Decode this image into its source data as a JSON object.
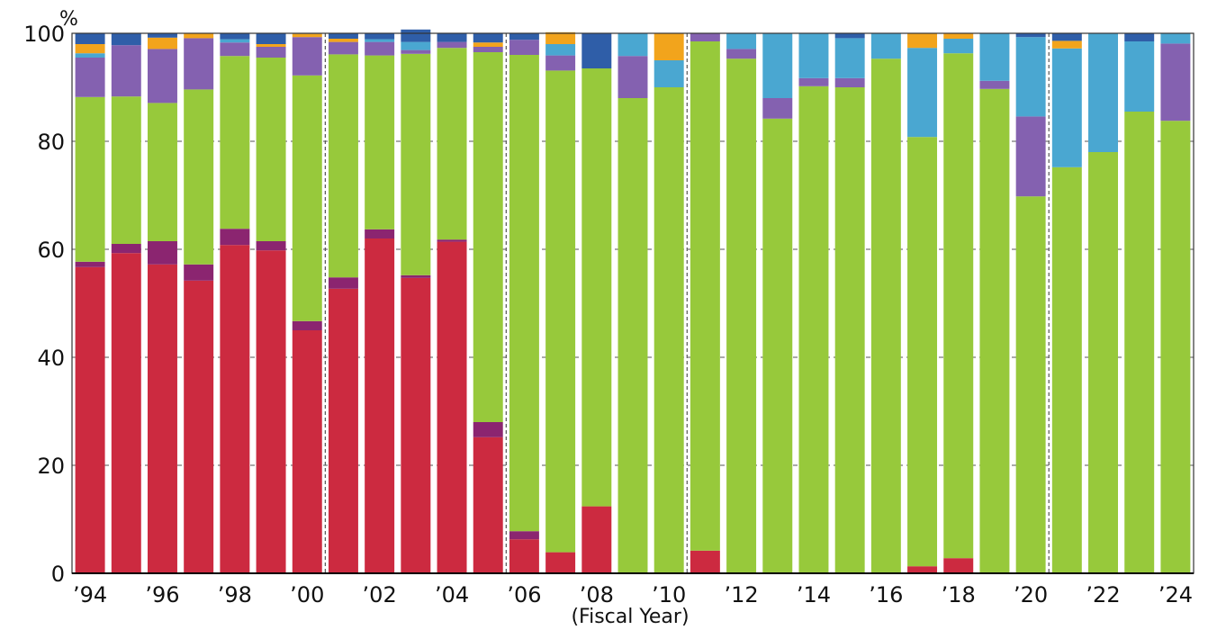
{
  "chart_data": {
    "type": "bar",
    "stacked": true,
    "percent_stacked": true,
    "xlabel": "(Fiscal Year)",
    "ylabel": "",
    "y_unit": "%",
    "ylim": [
      0,
      100
    ],
    "y_ticks": [
      0,
      20,
      40,
      60,
      80,
      100
    ],
    "y_tick_labels": [
      "0",
      "20",
      "40",
      "60",
      "80",
      "100"
    ],
    "grid": "horizontal dashed",
    "categories": [
      "1994",
      "1995",
      "1996",
      "1997",
      "1998",
      "1999",
      "2000",
      "2001",
      "2002",
      "2003",
      "2004",
      "2005",
      "2006",
      "2007",
      "2008",
      "2009",
      "2010",
      "2011",
      "2012",
      "2013",
      "2014",
      "2015",
      "2016",
      "2017",
      "2018",
      "2019",
      "2020",
      "2021",
      "2022",
      "2023",
      "2024"
    ],
    "x_tick_labels": [
      "’94",
      "",
      "’96",
      "",
      "’98",
      "",
      "’00",
      "",
      "’02",
      "",
      "’04",
      "",
      "’06",
      "",
      "’08",
      "",
      "’10",
      "",
      "’12",
      "",
      "’14",
      "",
      "’16",
      "",
      "’18",
      "",
      "’20",
      "",
      "’22",
      "",
      "’24"
    ],
    "period_dividers_after": [
      "2000",
      "2005",
      "2010",
      "2020"
    ],
    "series": [
      {
        "color": "#cc2a40",
        "values": [
          56.7,
          59.3,
          57.2,
          54.2,
          60.8,
          59.8,
          45.0,
          52.7,
          62.0,
          54.7,
          61.4,
          25.2,
          6.3,
          3.9,
          12.4,
          0,
          0,
          4.2,
          0,
          0,
          0,
          0,
          0,
          1.3,
          2.8,
          0,
          0,
          0,
          0,
          0,
          0
        ]
      },
      {
        "color": "#8b2570",
        "values": [
          1.0,
          1.7,
          4.3,
          3.0,
          3.0,
          1.7,
          1.7,
          2.1,
          1.7,
          0.5,
          0.4,
          2.8,
          1.5,
          0,
          0,
          0,
          0,
          0,
          0,
          0,
          0,
          0,
          0,
          0,
          0,
          0,
          0,
          0,
          0,
          0,
          0
        ]
      },
      {
        "color": "#97c93b",
        "values": [
          30.5,
          27.3,
          25.6,
          32.4,
          32.0,
          34.0,
          45.5,
          41.3,
          32.2,
          41.0,
          35.5,
          68.5,
          88.2,
          89.2,
          81.1,
          88.0,
          90.0,
          94.3,
          95.3,
          84.2,
          90.2,
          90.0,
          95.3,
          79.5,
          93.5,
          89.7,
          69.8,
          75.2,
          78.0,
          85.5,
          83.8
        ]
      },
      {
        "color": "#8461b0",
        "values": [
          7.3,
          9.5,
          10.0,
          9.5,
          2.5,
          2.0,
          7.1,
          2.3,
          2.5,
          0.7,
          1.1,
          1.0,
          2.8,
          2.8,
          0,
          7.8,
          0,
          1.5,
          1.8,
          3.8,
          1.5,
          1.7,
          0,
          0,
          0,
          1.5,
          14.8,
          0,
          0,
          0,
          14.3
        ]
      },
      {
        "color": "#4aa7d1",
        "values": [
          0.8,
          0,
          0,
          0,
          0.6,
          0,
          0,
          0,
          0.5,
          1.5,
          0,
          0,
          0,
          2.1,
          0,
          4.2,
          5.0,
          0,
          2.9,
          12.0,
          8.3,
          7.4,
          4.7,
          16.5,
          2.7,
          8.8,
          14.7,
          22.0,
          22.0,
          13.0,
          1.9
        ]
      },
      {
        "color": "#f2a41c",
        "values": [
          1.7,
          0,
          2.1,
          0.9,
          0,
          0.5,
          0.6,
          0.6,
          0,
          0,
          0,
          0.8,
          0,
          2.2,
          0,
          0,
          5.0,
          0,
          0,
          0,
          0,
          0,
          0,
          2.7,
          1.0,
          0,
          0,
          1.4,
          0,
          0,
          0
        ]
      },
      {
        "color": "#2f5ea8",
        "values": [
          2.0,
          2.2,
          0.8,
          0,
          1.1,
          2.0,
          0.1,
          1.0,
          1.1,
          2.3,
          1.6,
          1.7,
          1.2,
          0,
          6.5,
          0,
          0,
          0,
          0,
          0,
          0,
          0.9,
          0,
          0,
          0,
          0,
          0.7,
          1.4,
          0,
          1.5,
          0
        ]
      }
    ]
  }
}
